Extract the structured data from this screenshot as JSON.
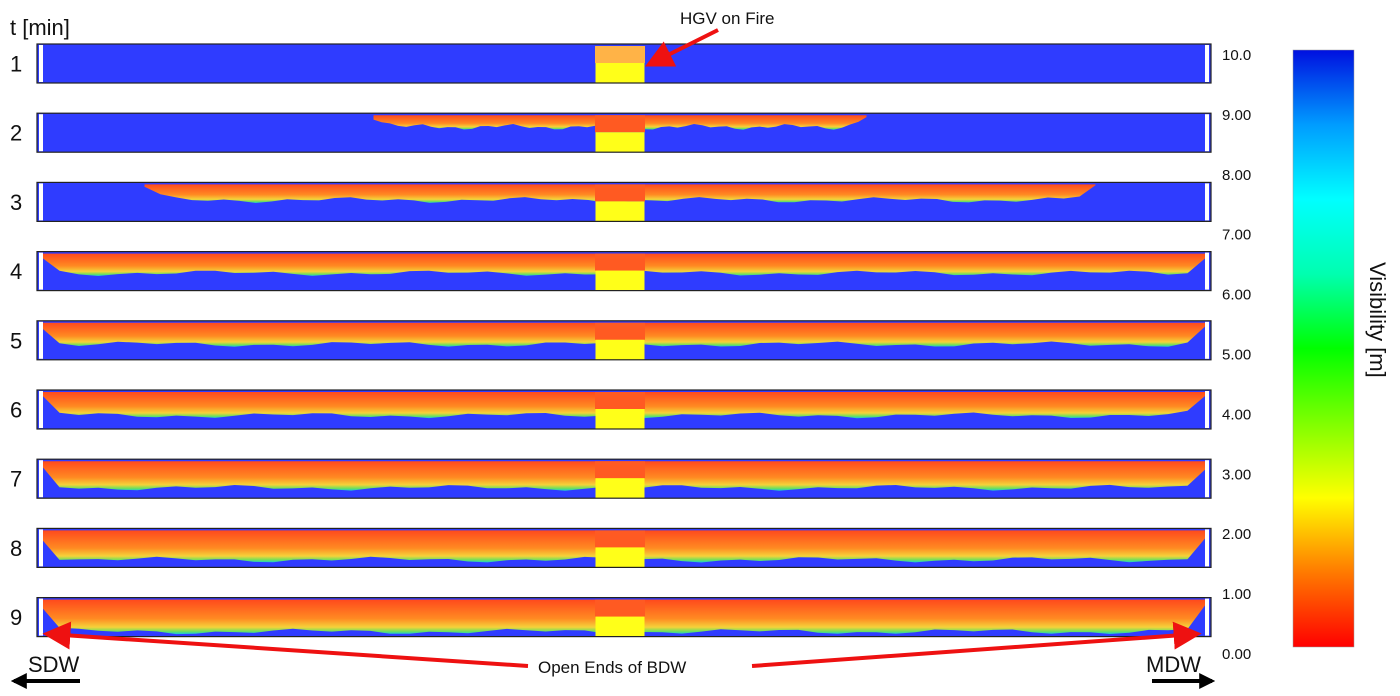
{
  "time_axis_label": "t [min]",
  "rows": [
    {
      "label": "1",
      "smoke_extent": 0.02,
      "smoke_depth": 0.0
    },
    {
      "label": "2",
      "smoke_extent": 0.42,
      "smoke_depth": 0.3
    },
    {
      "label": "3",
      "smoke_extent": 0.81,
      "smoke_depth": 0.4
    },
    {
      "label": "4",
      "smoke_extent": 1.0,
      "smoke_depth": 0.5
    },
    {
      "label": "5",
      "smoke_extent": 1.0,
      "smoke_depth": 0.55
    },
    {
      "label": "6",
      "smoke_extent": 1.0,
      "smoke_depth": 0.6
    },
    {
      "label": "7",
      "smoke_extent": 1.0,
      "smoke_depth": 0.68
    },
    {
      "label": "8",
      "smoke_extent": 1.0,
      "smoke_depth": 0.75
    },
    {
      "label": "9",
      "smoke_extent": 1.0,
      "smoke_depth": 0.82
    }
  ],
  "annotations": {
    "fire": "HGV on Fire",
    "open_ends": "Open Ends of BDW",
    "left_end": "SDW",
    "right_end": "MDW"
  },
  "colorbar": {
    "title": "Visibility [m]",
    "ticks": [
      "10.0",
      "9.00",
      "8.00",
      "7.00",
      "6.00",
      "5.00",
      "4.00",
      "3.00",
      "2.00",
      "1.00",
      "0.00"
    ],
    "min": 0,
    "max": 10,
    "colors": [
      "#ff0000",
      "#ff7a00",
      "#ffff00",
      "#7fff00",
      "#00ff00",
      "#00ffb0",
      "#00ffff",
      "#009cff",
      "#0010e0"
    ]
  },
  "colors": {
    "clear_air": "#2f3cff",
    "fire_block": "#ffff19",
    "smoke_top": "#ff5a1e",
    "arrow_red": "#ee1111"
  }
}
